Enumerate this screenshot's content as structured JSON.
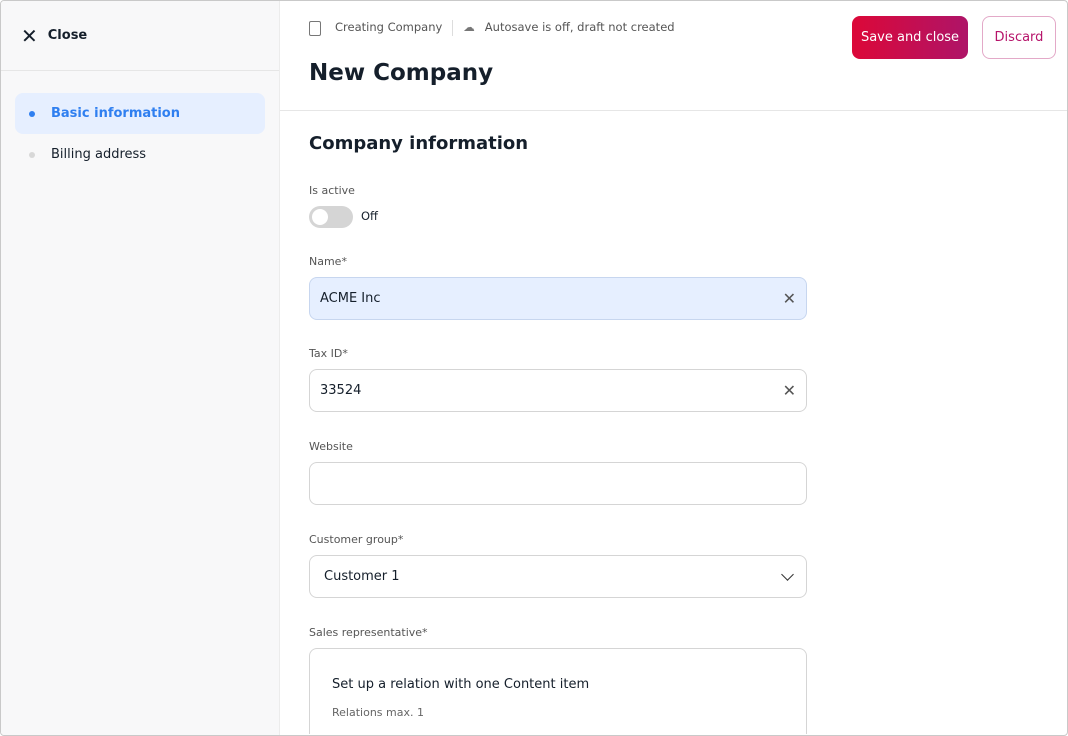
{
  "sidebar": {
    "close_label": "Close",
    "items": [
      {
        "label": "Basic information",
        "active": true
      },
      {
        "label": "Billing address",
        "active": false
      }
    ]
  },
  "header": {
    "breadcrumb": "Creating Company",
    "autosave": "Autosave is off, draft not created",
    "title": "New Company",
    "save_label": "Save and close",
    "discard_label": "Discard"
  },
  "colors": {
    "accent": "#2f7ff0",
    "primary_start": "#dc0838",
    "primary_end": "#ae1468"
  },
  "form": {
    "section_title": "Company information",
    "is_active": {
      "label": "Is active",
      "state": "Off"
    },
    "name": {
      "label": "Name*",
      "value": "ACME Inc"
    },
    "tax_id": {
      "label": "Tax ID*",
      "value": "33524"
    },
    "website": {
      "label": "Website",
      "value": ""
    },
    "customer_group": {
      "label": "Customer group*",
      "value": "Customer 1"
    },
    "sales_rep": {
      "label": "Sales representative*",
      "prompt": "Set up a relation with one Content item",
      "hint": "Relations max. 1"
    }
  }
}
